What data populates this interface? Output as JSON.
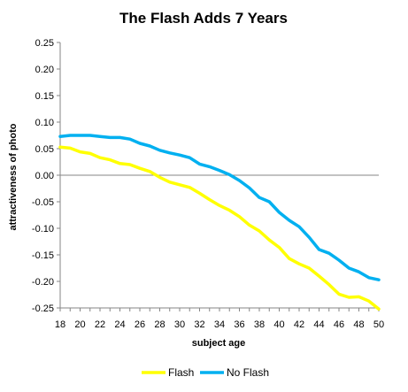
{
  "chart_data": {
    "type": "line",
    "title": "The Flash Adds 7 Years",
    "xlabel": "subject age",
    "ylabel": "attractiveness of photo",
    "xlim": [
      18,
      50
    ],
    "ylim": [
      -0.25,
      0.25
    ],
    "x_ticks": [
      "18",
      "20",
      "22",
      "24",
      "26",
      "28",
      "30",
      "32",
      "34",
      "36",
      "38",
      "40",
      "42",
      "44",
      "46",
      "48",
      "50"
    ],
    "y_ticks": [
      "0.25",
      "0.20",
      "0.15",
      "0.10",
      "0.05",
      "0.00",
      "-0.05",
      "-0.10",
      "-0.15",
      "-0.20",
      "-0.25"
    ],
    "grid": false,
    "legend_position": "bottom",
    "x": [
      18,
      19,
      20,
      21,
      22,
      23,
      24,
      25,
      26,
      27,
      28,
      29,
      30,
      31,
      32,
      33,
      34,
      35,
      36,
      37,
      38,
      39,
      40,
      41,
      42,
      43,
      44,
      45,
      46,
      47,
      48,
      49,
      50
    ],
    "series": [
      {
        "name": "Flash",
        "color": "#ffff00",
        "values": [
          0.053,
          0.051,
          0.044,
          0.041,
          0.033,
          0.029,
          0.022,
          0.02,
          0.013,
          0.007,
          -0.004,
          -0.013,
          -0.018,
          -0.023,
          -0.034,
          -0.046,
          -0.057,
          -0.066,
          -0.078,
          -0.094,
          -0.105,
          -0.122,
          -0.136,
          -0.157,
          -0.167,
          -0.175,
          -0.19,
          -0.206,
          -0.224,
          -0.23,
          -0.229,
          -0.237,
          -0.252
        ]
      },
      {
        "name": "No Flash",
        "color": "#00b0f0",
        "values": [
          0.073,
          0.075,
          0.075,
          0.075,
          0.073,
          0.071,
          0.071,
          0.068,
          0.06,
          0.055,
          0.047,
          0.042,
          0.038,
          0.033,
          0.021,
          0.016,
          0.009,
          0.001,
          -0.01,
          -0.024,
          -0.042,
          -0.05,
          -0.07,
          -0.085,
          -0.097,
          -0.117,
          -0.14,
          -0.147,
          -0.16,
          -0.175,
          -0.182,
          -0.193,
          -0.197
        ]
      }
    ]
  }
}
